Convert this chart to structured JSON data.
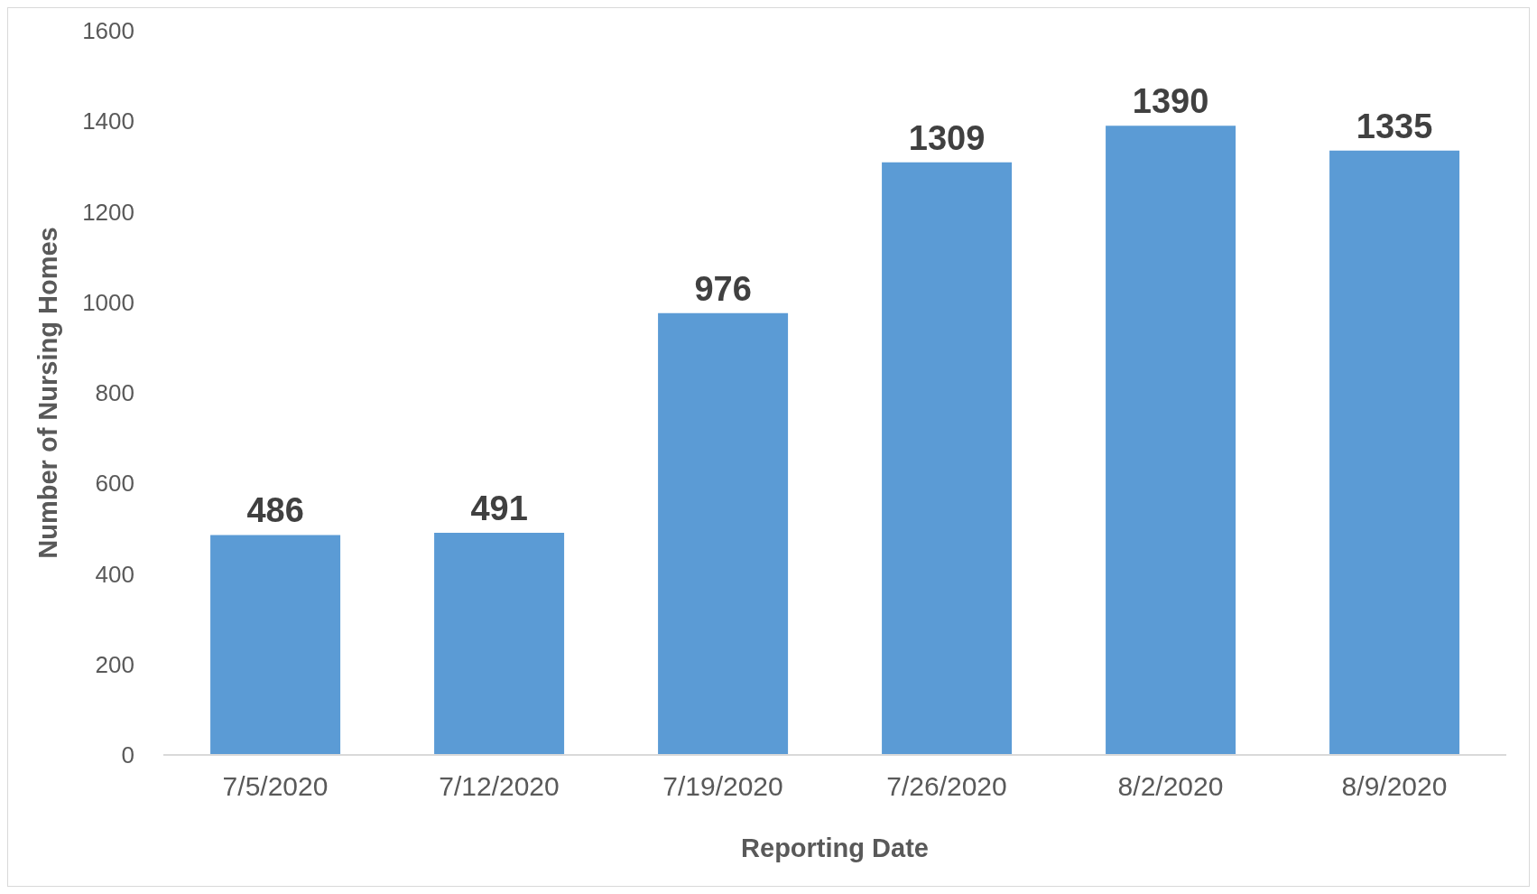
{
  "chart_data": {
    "type": "bar",
    "xlabel": "Reporting Date",
    "ylabel": "Number of Nursing Homes",
    "categories": [
      "7/5/2020",
      "7/12/2020",
      "7/19/2020",
      "7/26/2020",
      "8/2/2020",
      "8/9/2020"
    ],
    "values": [
      486,
      491,
      976,
      1309,
      1390,
      1335
    ],
    "color": "#5b9bd5",
    "ylim": [
      0,
      1600
    ],
    "yticks": [
      0,
      200,
      400,
      600,
      800,
      1000,
      1200,
      1400,
      1600
    ],
    "grid": false,
    "data_labels": true
  }
}
